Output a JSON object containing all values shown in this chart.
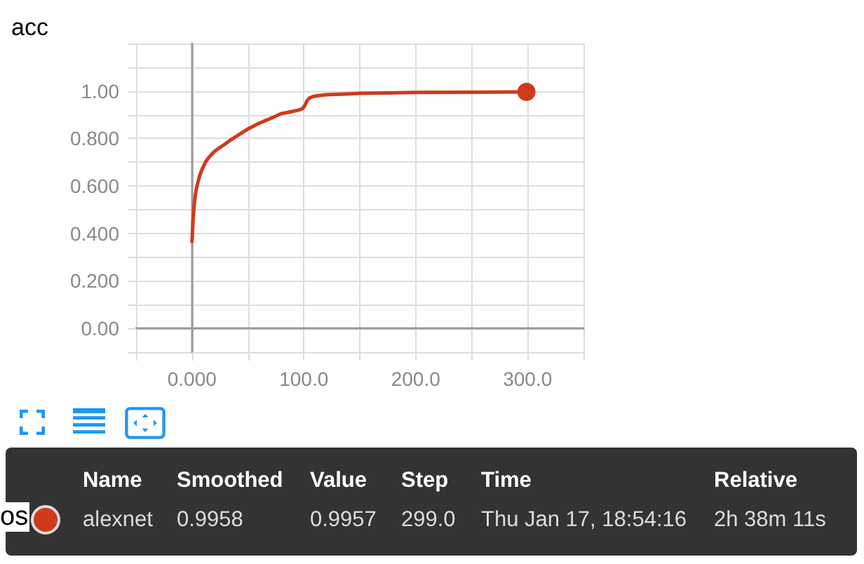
{
  "chart_data": {
    "type": "line",
    "title": "acc",
    "series": [
      {
        "color": "#d1391b",
        "x": [
          0,
          1,
          2,
          3,
          4,
          5,
          7,
          9,
          12,
          15,
          20,
          25,
          30,
          35,
          40,
          45,
          50,
          55,
          60,
          65,
          70,
          75,
          80,
          85,
          90,
          95,
          99,
          101,
          103,
          105,
          108,
          112,
          120,
          130,
          150,
          175,
          200,
          250,
          299
        ],
        "values": [
          0.366,
          0.46,
          0.52,
          0.56,
          0.59,
          0.61,
          0.645,
          0.67,
          0.7,
          0.72,
          0.745,
          0.762,
          0.778,
          0.795,
          0.81,
          0.825,
          0.84,
          0.852,
          0.864,
          0.874,
          0.884,
          0.894,
          0.905,
          0.909,
          0.914,
          0.919,
          0.926,
          0.94,
          0.96,
          0.97,
          0.976,
          0.98,
          0.984,
          0.986,
          0.99,
          0.992,
          0.994,
          0.995,
          0.996
        ]
      },
      {
        "type": "scatter",
        "marker": "circle",
        "color": "#d1391b",
        "x": [
          299
        ],
        "values": [
          0.9958
        ]
      }
    ],
    "xlim": [
      -50,
      350
    ],
    "xticks": [
      {
        "value": -50,
        "label": null
      },
      {
        "value": 0,
        "label": "0.000"
      },
      {
        "value": 50,
        "label": null
      },
      {
        "value": 100,
        "label": "100.0"
      },
      {
        "value": 150,
        "label": null
      },
      {
        "value": 200,
        "label": "200.0"
      },
      {
        "value": 250,
        "label": null
      },
      {
        "value": 300,
        "label": "300.0"
      },
      {
        "value": 350,
        "label": null
      }
    ],
    "ylim": [
      -0.1,
      1.2
    ],
    "yticks": [
      {
        "value": -0.1,
        "label": null
      },
      {
        "value": 0,
        "label": "0.00"
      },
      {
        "value": 0.1,
        "label": null
      },
      {
        "value": 0.2,
        "label": "0.200"
      },
      {
        "value": 0.3,
        "label": null
      },
      {
        "value": 0.4,
        "label": "0.400"
      },
      {
        "value": 0.5,
        "label": null
      },
      {
        "value": 0.6,
        "label": "0.600"
      },
      {
        "value": 0.7,
        "label": null
      },
      {
        "value": 0.8,
        "label": "0.800"
      },
      {
        "value": 0.9,
        "label": null
      },
      {
        "value": 1,
        "label": "1.00"
      },
      {
        "value": 1.1,
        "label": null
      },
      {
        "value": 1.2,
        "label": null
      }
    ],
    "grid": true,
    "marker": "none",
    "annotations": [
      "Name",
      "Smoothed",
      "Value",
      "Step",
      "Time",
      "Relative",
      "alexnet",
      "0.9958",
      "0.9957",
      "299.0",
      "Thu Jan 17, 18:54:16",
      "2h 38m 11s",
      "os"
    ]
  }
}
